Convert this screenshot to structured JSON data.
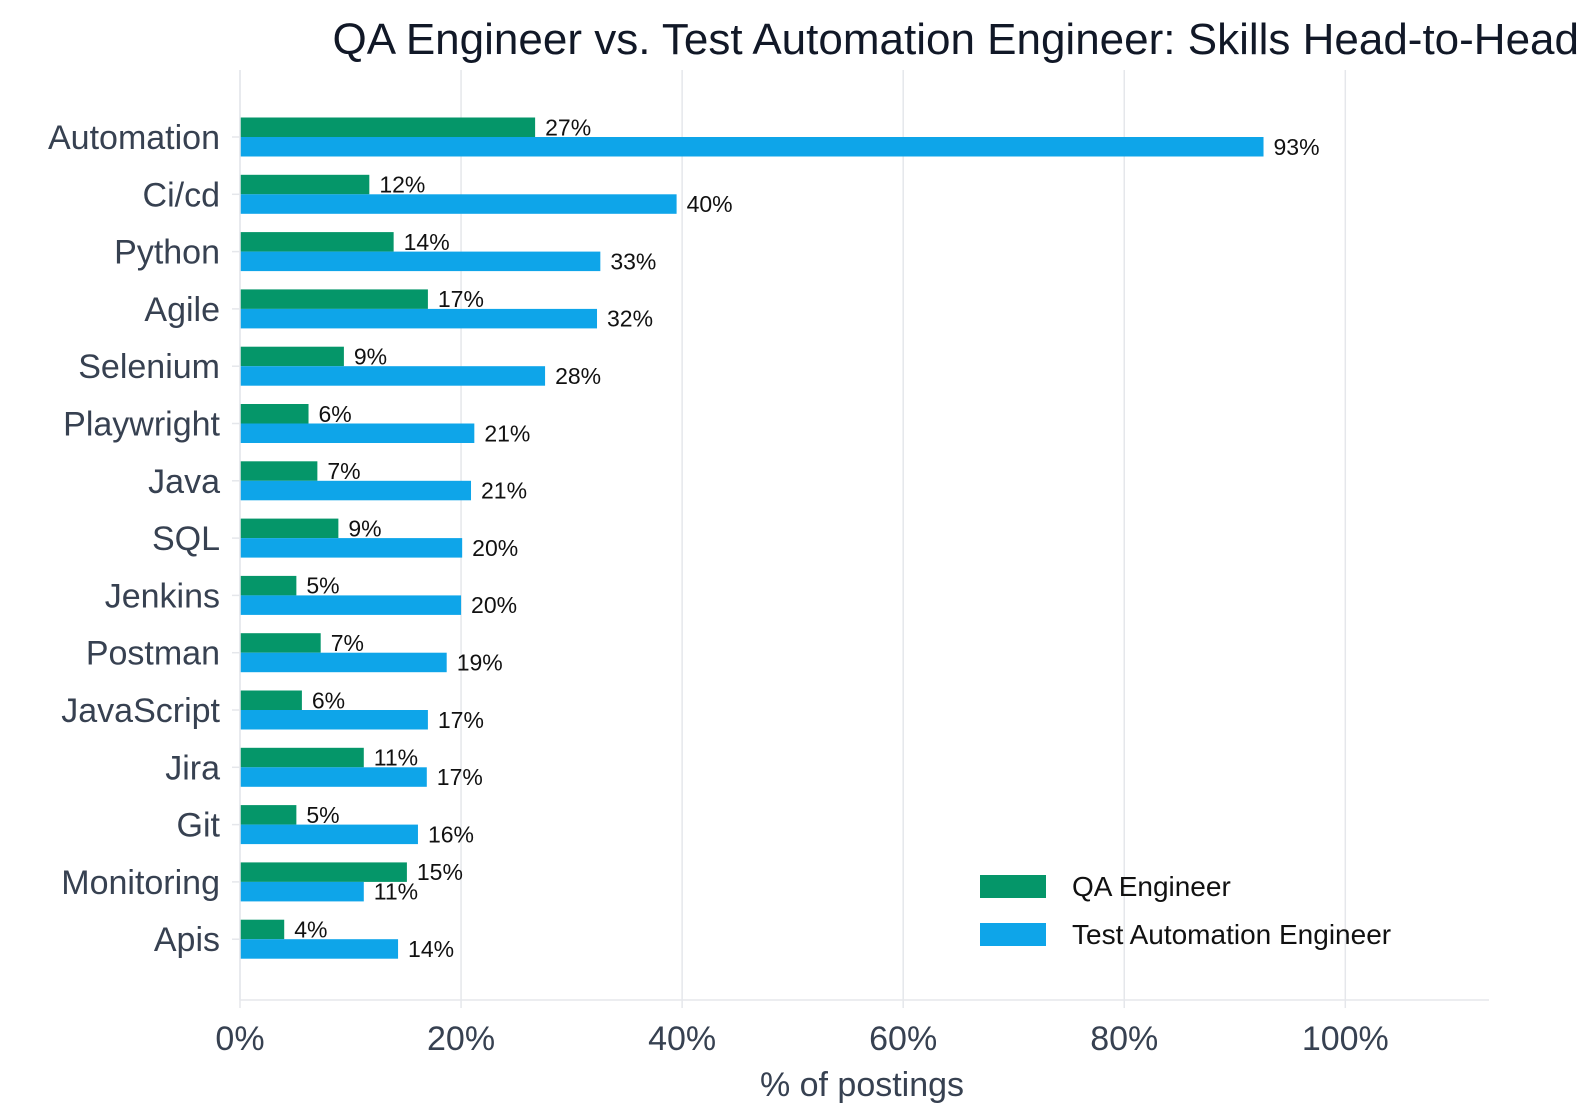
{
  "chart_data": {
    "type": "bar",
    "orientation": "horizontal",
    "title": "QA Engineer vs. Test Automation Engineer: Skills Head-to-Head",
    "xlabel": "% of postings",
    "ylabel": "",
    "xlim": [
      0,
      113
    ],
    "xticks": [
      0,
      20,
      40,
      60,
      80,
      100
    ],
    "xtick_labels": [
      "0%",
      "20%",
      "40%",
      "60%",
      "80%",
      "100%"
    ],
    "grid": "vertical",
    "legend_position": "bottom-right",
    "categories": [
      "Automation",
      "Ci/cd",
      "Python",
      "Agile",
      "Selenium",
      "Playwright",
      "Java",
      "SQL",
      "Jenkins",
      "Postman",
      "JavaScript",
      "Jira",
      "Git",
      "Monitoring",
      "Apis"
    ],
    "series": [
      {
        "name": "QA Engineer",
        "color": "#059669",
        "values": [
          26.7,
          11.7,
          13.9,
          17.0,
          9.4,
          6.2,
          7.0,
          8.9,
          5.1,
          7.3,
          5.6,
          11.2,
          5.1,
          15.1,
          4.0
        ],
        "labels": [
          "27%",
          "12%",
          "14%",
          "17%",
          "9%",
          "6%",
          "7%",
          "9%",
          "5%",
          "7%",
          "6%",
          "11%",
          "5%",
          "15%",
          "4%"
        ]
      },
      {
        "name": "Test Automation Engineer",
        "color": "#0ea5e9",
        "values": [
          92.6,
          39.5,
          32.6,
          32.3,
          27.6,
          21.2,
          20.9,
          20.1,
          20.0,
          18.7,
          17.0,
          16.9,
          16.1,
          11.2,
          14.3
        ],
        "labels": [
          "93%",
          "40%",
          "33%",
          "32%",
          "28%",
          "21%",
          "21%",
          "20%",
          "20%",
          "19%",
          "17%",
          "17%",
          "16%",
          "11%",
          "14%"
        ]
      }
    ]
  }
}
